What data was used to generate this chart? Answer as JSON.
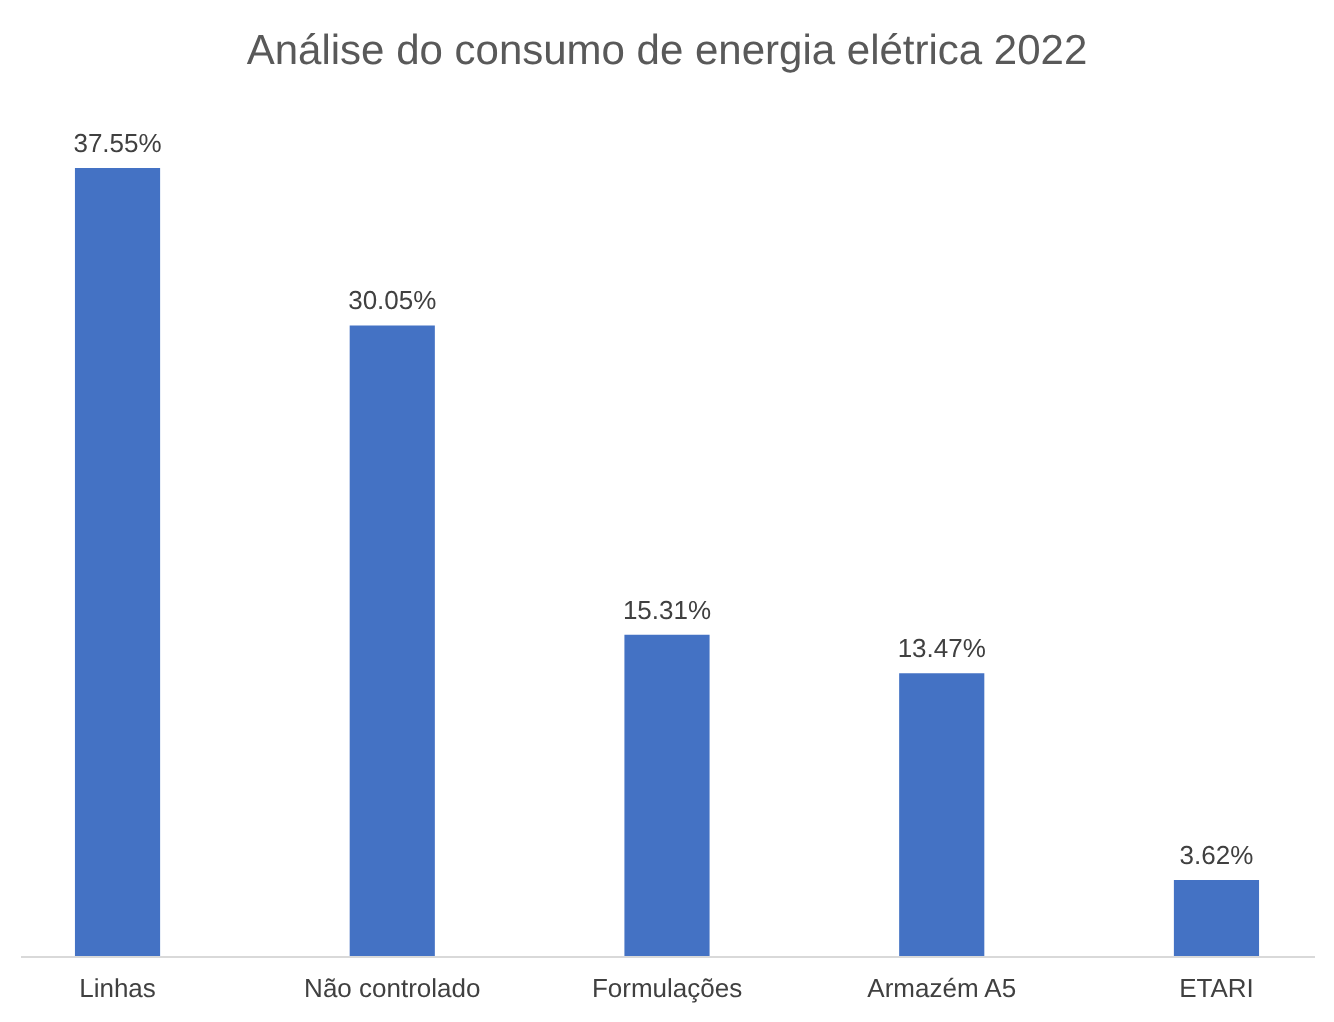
{
  "chart_data": {
    "type": "bar",
    "title": "Análise do consumo de energia elétrica 2022",
    "categories": [
      "Linhas",
      "Não controlado",
      "Formulações",
      "Armazém A5",
      "ETARI"
    ],
    "values": [
      37.55,
      30.05,
      15.31,
      13.47,
      3.62
    ],
    "value_labels": [
      "37.55%",
      "30.05%",
      "15.31%",
      "13.47%",
      "3.62%"
    ],
    "color": "#4472c4",
    "grid": false
  }
}
